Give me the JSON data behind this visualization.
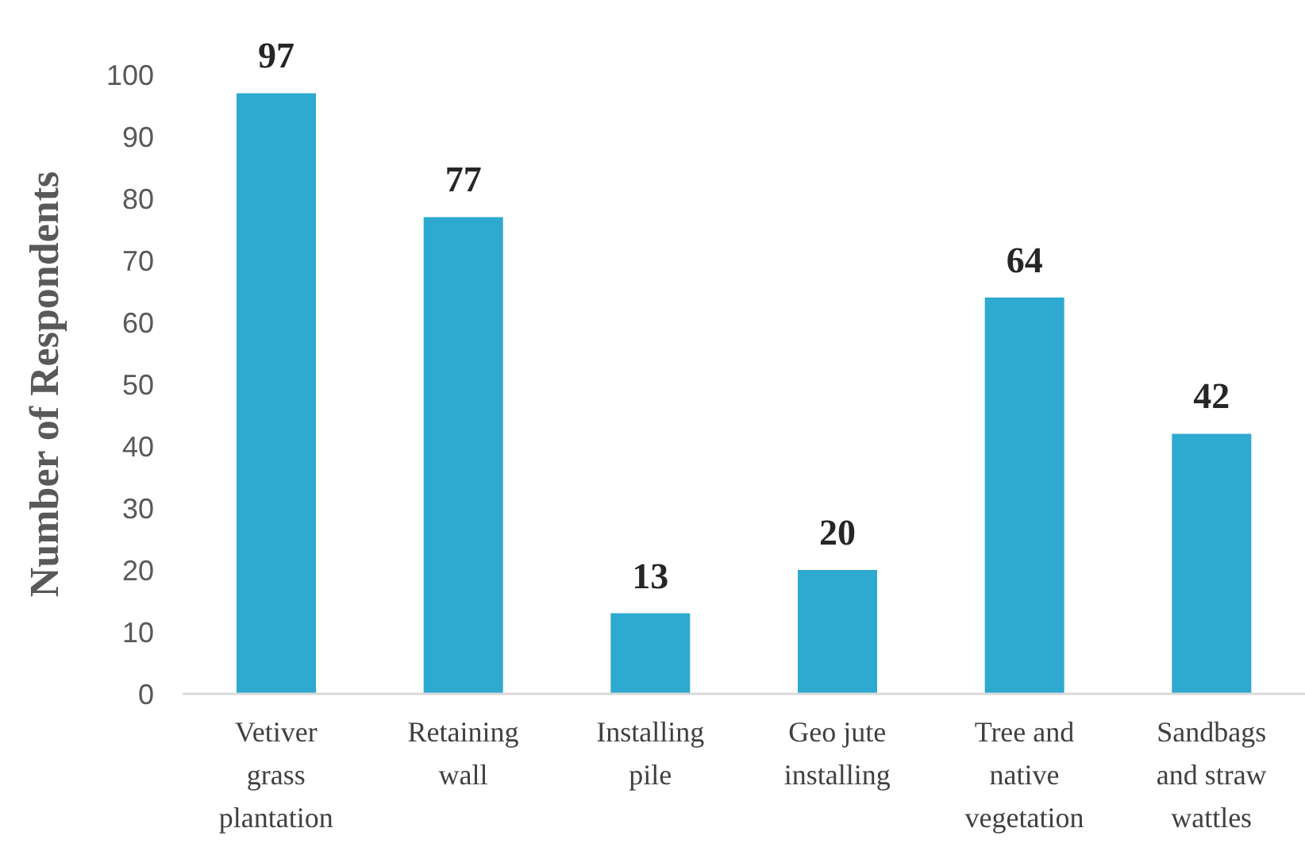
{
  "chart_data": {
    "type": "bar",
    "ylabel": "Number of Respondents",
    "categories": [
      "Vetiver grass plantation",
      "Retaining wall",
      "Installing pile",
      "Geo jute installing",
      "Tree and native vegetation",
      "Sandbags and straw wattles"
    ],
    "values": [
      97,
      77,
      13,
      20,
      64,
      42
    ],
    "color": "#2ea9cf",
    "ylim": [
      0,
      100
    ],
    "yticks": [
      0,
      10,
      20,
      30,
      40,
      50,
      60,
      70,
      80,
      90,
      100
    ],
    "data_labels": true
  }
}
